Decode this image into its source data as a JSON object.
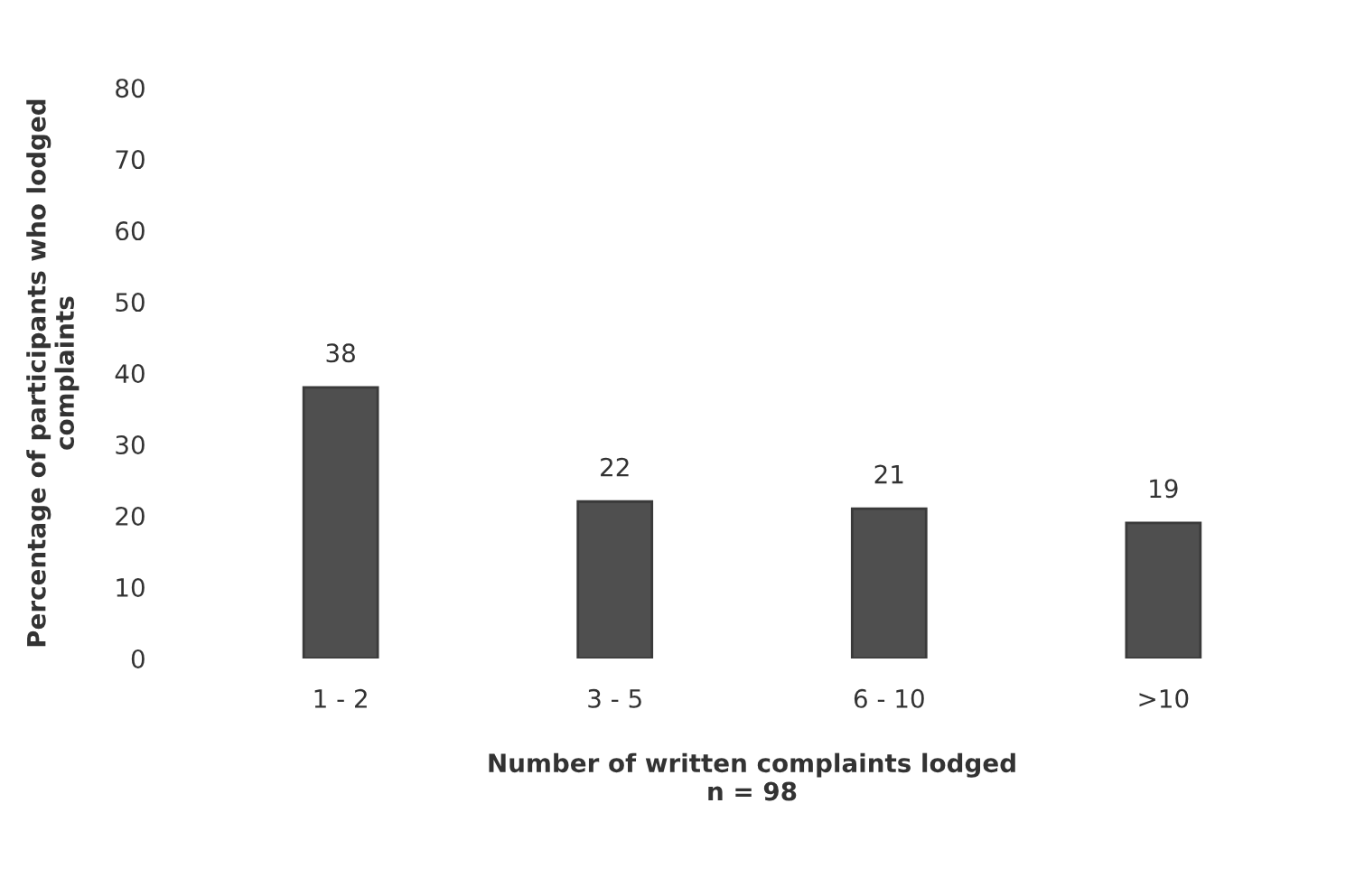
{
  "chart_data": {
    "type": "bar",
    "xlabel": "Number of written complaints lodged\nn = 98",
    "ylabel": "Percentage of participants who lodged\ncomplaints",
    "categories": [
      "1 - 2",
      "3 - 5",
      "6 - 10",
      ">10"
    ],
    "values": [
      38,
      22,
      21,
      19
    ],
    "color": "#4f4f4f",
    "ylim": [
      0,
      80
    ],
    "yticks": [
      0,
      10,
      20,
      30,
      40,
      50,
      60,
      70,
      80
    ],
    "data_labels": true
  }
}
